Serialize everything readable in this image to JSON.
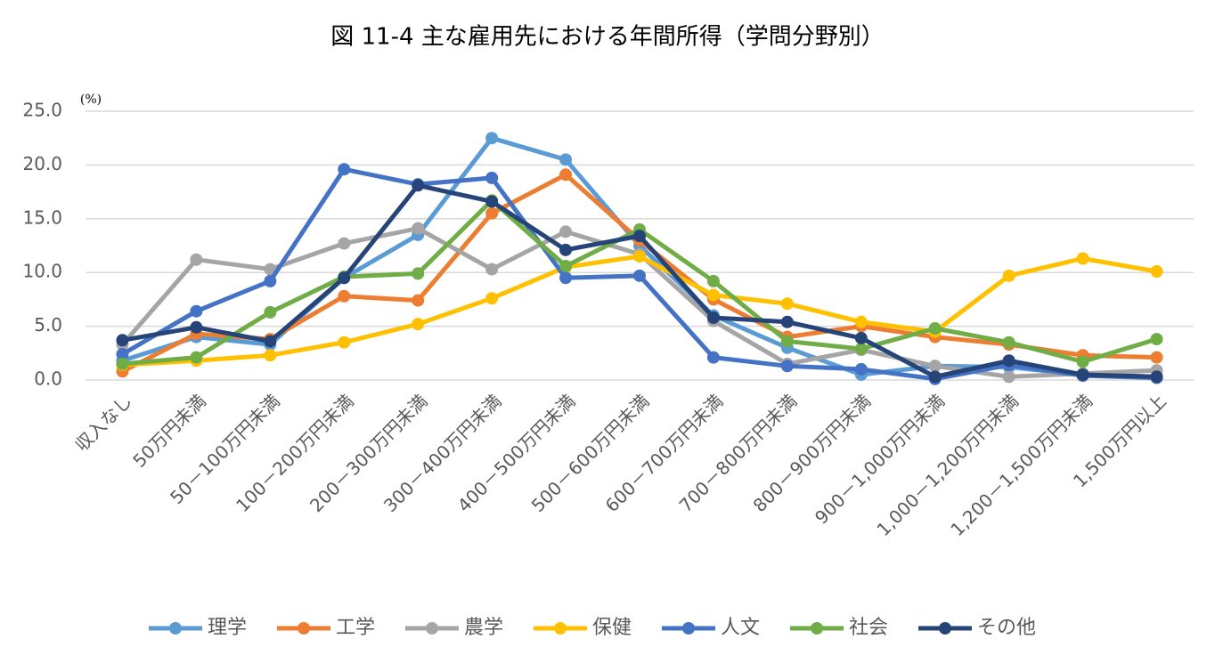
{
  "chart_data": {
    "type": "line",
    "title": "図 11-4 主な雇用先における年間所得（学問分野別）",
    "y_unit": "(%)",
    "categories": [
      "収入なし",
      "50万円未満",
      "50－100万円未満",
      "100－200万円未満",
      "200－300万円未満",
      "300－400万円未満",
      "400－500万円未満",
      "500－600万円未満",
      "600－700万円未満",
      "700－800万円未満",
      "800－900万円未満",
      "900－1,000万円未満",
      "1,000－1,200万円未満",
      "1,200－1,500万円未満",
      "1,500万円以上"
    ],
    "series": [
      {
        "name": "理学",
        "color": "#5b9bd5",
        "values": [
          1.8,
          4.0,
          3.3,
          9.5,
          13.5,
          22.5,
          20.5,
          12.5,
          6.0,
          3.0,
          0.5,
          1.3,
          1.2,
          0.5,
          0.3
        ]
      },
      {
        "name": "工学",
        "color": "#ed7d31",
        "values": [
          0.8,
          4.3,
          3.8,
          7.8,
          7.4,
          15.5,
          19.1,
          13.0,
          7.5,
          4.0,
          5.0,
          4.0,
          3.3,
          2.3,
          2.1
        ]
      },
      {
        "name": "農学",
        "color": "#a5a5a5",
        "values": [
          3.3,
          11.2,
          10.3,
          12.7,
          14.1,
          10.3,
          13.8,
          11.7,
          5.5,
          1.5,
          2.8,
          1.3,
          0.3,
          0.6,
          0.9
        ]
      },
      {
        "name": "保健",
        "color": "#ffc000",
        "values": [
          1.4,
          1.8,
          2.3,
          3.5,
          5.2,
          7.6,
          10.5,
          11.5,
          7.9,
          7.1,
          5.4,
          4.5,
          9.7,
          11.3,
          10.1
        ]
      },
      {
        "name": "人文",
        "color": "#4472c4",
        "values": [
          2.4,
          6.4,
          9.2,
          19.6,
          18.2,
          18.8,
          9.5,
          9.7,
          2.1,
          1.3,
          1.0,
          0.1,
          1.4,
          0.4,
          0.2
        ]
      },
      {
        "name": "社会",
        "color": "#70ad47",
        "values": [
          1.5,
          2.1,
          6.3,
          9.6,
          9.9,
          16.7,
          10.6,
          14.0,
          9.2,
          3.6,
          2.9,
          4.8,
          3.5,
          1.7,
          3.8
        ]
      },
      {
        "name": "その他",
        "color": "#264478",
        "values": [
          3.7,
          4.9,
          3.6,
          9.5,
          18.1,
          16.6,
          12.1,
          13.4,
          5.8,
          5.4,
          3.9,
          0.3,
          1.8,
          0.5,
          0.3
        ]
      }
    ],
    "ylim": [
      0,
      25
    ],
    "yticks": [
      {
        "value": 0,
        "label": "0.0"
      },
      {
        "value": 5,
        "label": "5.0"
      },
      {
        "value": 10,
        "label": "10.0"
      },
      {
        "value": 15,
        "label": "15.0"
      },
      {
        "value": 20,
        "label": "20.0"
      },
      {
        "value": 25,
        "label": "25.0"
      }
    ],
    "grid": true,
    "legend": "bottom"
  }
}
